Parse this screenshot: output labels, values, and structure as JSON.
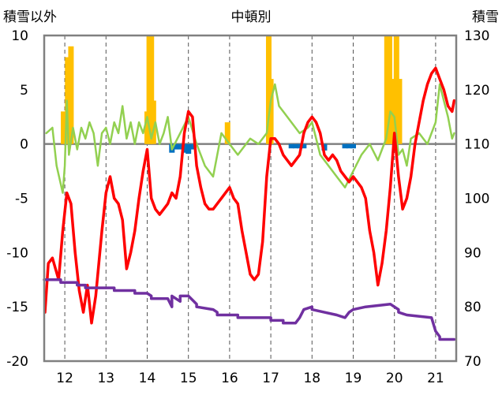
{
  "chart_data": {
    "type": "line",
    "title": "中頓別",
    "left_axis_label": "積雪以外",
    "right_axis_label": "積雪",
    "left_ylim": [
      -20,
      10
    ],
    "left_yticks": [
      "10",
      "5",
      "0",
      "-5",
      "-10",
      "-15",
      "-20"
    ],
    "right_ylim": [
      70,
      130
    ],
    "right_yticks": [
      "130",
      "120",
      "110",
      "100",
      "90",
      "80",
      "70"
    ],
    "xlim": [
      11.5,
      21.5
    ],
    "x_ticks": [
      "12",
      "13",
      "14",
      "15",
      "16",
      "17",
      "18",
      "19",
      "20",
      "21"
    ],
    "grid": "vertical dashed",
    "colors": {
      "red": "#ff0000",
      "green": "#92d050",
      "yellow": "#ffc000",
      "blue": "#0070c0",
      "purple": "#7030a0",
      "frame": "#808080",
      "grid": "#555555"
    },
    "series": [
      {
        "axis": "left",
        "style": "bar",
        "color": "#ffc000",
        "x": [
          11.97,
          12.07,
          12.15,
          14.0,
          14.05,
          14.1,
          14.15,
          15.95,
          16.95,
          17.0,
          19.82,
          19.88,
          19.95,
          20.0,
          20.05,
          20.12
        ],
        "values": [
          3.0,
          8.0,
          9.0,
          3.0,
          10.0,
          10.0,
          4.0,
          2.0,
          10.0,
          6.0,
          10.0,
          10.0,
          6.0,
          3.0,
          10.0,
          6.0
        ]
      },
      {
        "axis": "left",
        "style": "bar",
        "color": "#0070c0",
        "x": [
          14.6,
          14.7,
          14.8,
          14.9,
          15.0,
          15.1,
          17.5,
          17.6,
          17.7,
          17.8,
          18.3,
          18.8,
          18.9,
          19.0
        ],
        "values": [
          -0.8,
          -0.5,
          -0.5,
          -0.8,
          -0.9,
          -0.5,
          -0.4,
          -0.4,
          -0.4,
          -0.4,
          -0.6,
          -0.4,
          -0.4,
          -0.4
        ]
      },
      {
        "axis": "left",
        "style": "line",
        "color": "#92d050",
        "x": [
          11.55,
          11.7,
          11.8,
          11.95,
          12.0,
          12.05,
          12.1,
          12.2,
          12.3,
          12.4,
          12.5,
          12.6,
          12.7,
          12.8,
          12.9,
          13.0,
          13.1,
          13.2,
          13.3,
          13.4,
          13.5,
          13.6,
          13.7,
          13.8,
          13.9,
          14.0,
          14.1,
          14.2,
          14.3,
          14.4,
          14.5,
          14.6,
          14.8,
          15.0,
          15.2,
          15.4,
          15.6,
          15.8,
          16.0,
          16.2,
          16.5,
          16.7,
          16.9,
          17.0,
          17.1,
          17.2,
          17.3,
          17.5,
          17.7,
          17.9,
          18.0,
          18.2,
          18.4,
          18.6,
          18.8,
          19.0,
          19.2,
          19.4,
          19.6,
          19.7,
          19.8,
          19.9,
          20.0,
          20.1,
          20.2,
          20.3,
          20.4,
          20.6,
          20.8,
          21.0,
          21.1,
          21.2,
          21.3,
          21.4,
          21.45
        ],
        "values": [
          1.0,
          1.5,
          -2.0,
          -4.5,
          -2.0,
          4.0,
          -1.0,
          1.5,
          -0.5,
          1.5,
          0.5,
          2.0,
          1.0,
          -2.0,
          1.0,
          1.5,
          0.0,
          2.0,
          1.0,
          3.5,
          0.5,
          2.0,
          0.0,
          2.0,
          1.0,
          2.5,
          0.5,
          2.0,
          0.0,
          1.0,
          2.5,
          -0.5,
          1.0,
          2.5,
          0.0,
          -2.0,
          -3.0,
          1.0,
          0.0,
          -1.0,
          0.5,
          0.0,
          1.0,
          4.0,
          5.5,
          3.5,
          3.0,
          2.0,
          1.0,
          1.5,
          2.0,
          -1.0,
          -2.0,
          -3.0,
          -4.0,
          -2.5,
          -1.0,
          0.0,
          -1.5,
          -0.5,
          0.5,
          3.0,
          2.5,
          -1.0,
          -0.5,
          -2.0,
          0.5,
          1.0,
          0.0,
          2.0,
          5.5,
          4.0,
          2.5,
          0.5,
          1.0
        ]
      },
      {
        "axis": "left",
        "style": "line",
        "color": "#ff0000",
        "x": [
          11.52,
          11.6,
          11.7,
          11.85,
          11.95,
          12.05,
          12.15,
          12.25,
          12.35,
          12.45,
          12.55,
          12.65,
          12.75,
          12.9,
          13.0,
          13.1,
          13.2,
          13.3,
          13.4,
          13.5,
          13.6,
          13.7,
          13.8,
          13.9,
          14.0,
          14.1,
          14.2,
          14.3,
          14.4,
          14.5,
          14.6,
          14.7,
          14.8,
          14.9,
          15.0,
          15.1,
          15.2,
          15.3,
          15.4,
          15.5,
          15.6,
          15.7,
          15.8,
          15.9,
          16.0,
          16.1,
          16.2,
          16.3,
          16.4,
          16.5,
          16.6,
          16.7,
          16.8,
          16.9,
          17.0,
          17.1,
          17.2,
          17.3,
          17.4,
          17.5,
          17.6,
          17.7,
          17.8,
          17.9,
          18.0,
          18.1,
          18.2,
          18.3,
          18.4,
          18.5,
          18.6,
          18.7,
          18.8,
          18.9,
          19.0,
          19.1,
          19.2,
          19.3,
          19.4,
          19.5,
          19.6,
          19.7,
          19.8,
          19.9,
          20.0,
          20.1,
          20.2,
          20.3,
          20.4,
          20.5,
          20.6,
          20.7,
          20.8,
          20.9,
          21.0,
          21.1,
          21.2,
          21.3,
          21.4,
          21.45
        ],
        "values": [
          -15.5,
          -11.0,
          -10.5,
          -12.5,
          -8.0,
          -4.5,
          -5.5,
          -10.0,
          -13.5,
          -15.5,
          -13.0,
          -16.5,
          -14.0,
          -8.0,
          -4.5,
          -3.0,
          -5.0,
          -5.5,
          -7.0,
          -11.5,
          -10.0,
          -8.0,
          -5.0,
          -2.5,
          -0.5,
          -5.0,
          -6.0,
          -6.5,
          -6.0,
          -5.5,
          -4.5,
          -5.0,
          -3.0,
          1.0,
          3.0,
          2.5,
          -2.0,
          -4.0,
          -5.5,
          -6.0,
          -6.0,
          -5.5,
          -5.0,
          -4.5,
          -4.0,
          -5.0,
          -5.5,
          -8.0,
          -10.0,
          -12.0,
          -12.5,
          -12.0,
          -9.0,
          -3.0,
          0.5,
          0.5,
          0.0,
          -1.0,
          -1.5,
          -2.0,
          -1.5,
          -1.0,
          1.0,
          2.0,
          2.5,
          2.0,
          1.0,
          -1.0,
          -1.5,
          -1.0,
          -1.5,
          -2.5,
          -3.0,
          -3.5,
          -3.0,
          -3.5,
          -4.0,
          -5.0,
          -8.0,
          -10.0,
          -13.0,
          -11.0,
          -8.0,
          -4.0,
          1.0,
          -3.0,
          -6.0,
          -5.0,
          -3.0,
          0.0,
          2.0,
          4.0,
          5.5,
          6.5,
          7.0,
          6.0,
          5.0,
          3.5,
          3.0,
          4.0
        ]
      },
      {
        "axis": "right",
        "style": "line",
        "color": "#7030a0",
        "x": [
          11.5,
          11.9,
          11.9,
          12.3,
          12.3,
          12.5,
          12.5,
          13.2,
          13.2,
          13.7,
          13.7,
          14.0,
          14.1,
          14.1,
          14.5,
          14.6,
          14.6,
          14.8,
          14.8,
          15.0,
          15.2,
          15.2,
          15.6,
          15.7,
          15.7,
          16.2,
          16.2,
          17.0,
          17.0,
          17.3,
          17.3,
          17.6,
          17.7,
          17.8,
          18.0,
          18.0,
          18.3,
          18.3,
          18.6,
          18.6,
          18.8,
          18.9,
          19.0,
          19.0,
          19.3,
          19.3,
          19.9,
          20.0,
          20.1,
          20.1,
          20.3,
          20.3,
          20.9,
          21.0,
          21.1,
          21.1,
          21.45
        ],
        "values": [
          85.0,
          85.0,
          84.5,
          84.5,
          84.0,
          84.0,
          83.5,
          83.5,
          83.0,
          83.0,
          82.5,
          82.5,
          82.0,
          81.5,
          81.5,
          80.0,
          82.0,
          81.0,
          82.0,
          82.0,
          80.5,
          80.0,
          79.5,
          79.0,
          78.5,
          78.5,
          78.0,
          78.0,
          77.5,
          77.5,
          77.0,
          77.0,
          78.0,
          79.5,
          80.0,
          79.5,
          79.0,
          79.0,
          78.5,
          78.5,
          78.0,
          79.0,
          79.5,
          79.5,
          80.0,
          80.0,
          80.5,
          80.0,
          79.5,
          79.0,
          78.5,
          78.5,
          78.0,
          75.5,
          74.5,
          74.0,
          74.0
        ]
      }
    ]
  }
}
